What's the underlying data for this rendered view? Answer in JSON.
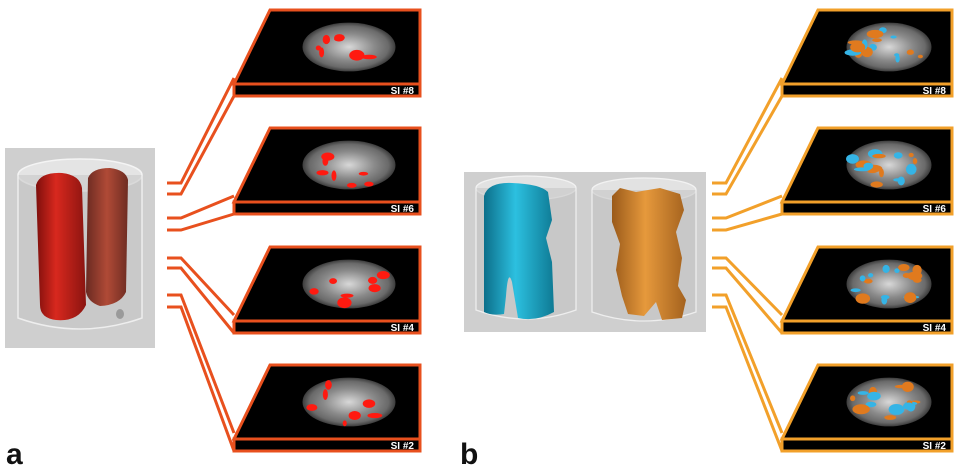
{
  "panels": [
    {
      "letter": "a",
      "accent": "#e8501e",
      "volume_colors": [
        "#c0221c",
        "#a8402e"
      ],
      "slices": [
        {
          "label": "SI #8",
          "overlay": "red"
        },
        {
          "label": "SI #6",
          "overlay": "red"
        },
        {
          "label": "SI #4",
          "overlay": "red"
        },
        {
          "label": "SI #2",
          "overlay": "red"
        }
      ]
    },
    {
      "letter": "b",
      "accent": "#f2a02a",
      "volume_colors": [
        "#1aa3c4",
        "#d88a32"
      ],
      "slices": [
        {
          "label": "SI #8",
          "overlay": "blue-orange"
        },
        {
          "label": "SI #6",
          "overlay": "blue-orange"
        },
        {
          "label": "SI #4",
          "overlay": "blue-orange"
        },
        {
          "label": "SI #2",
          "overlay": "blue-orange"
        }
      ]
    }
  ],
  "colors": {
    "red_overlay": "#ff1a10",
    "blue_overlay": "#35b4e6",
    "orange_overlay": "#e07a1e",
    "slice_background": "#000000",
    "volume_box": "#cfcfcf"
  }
}
